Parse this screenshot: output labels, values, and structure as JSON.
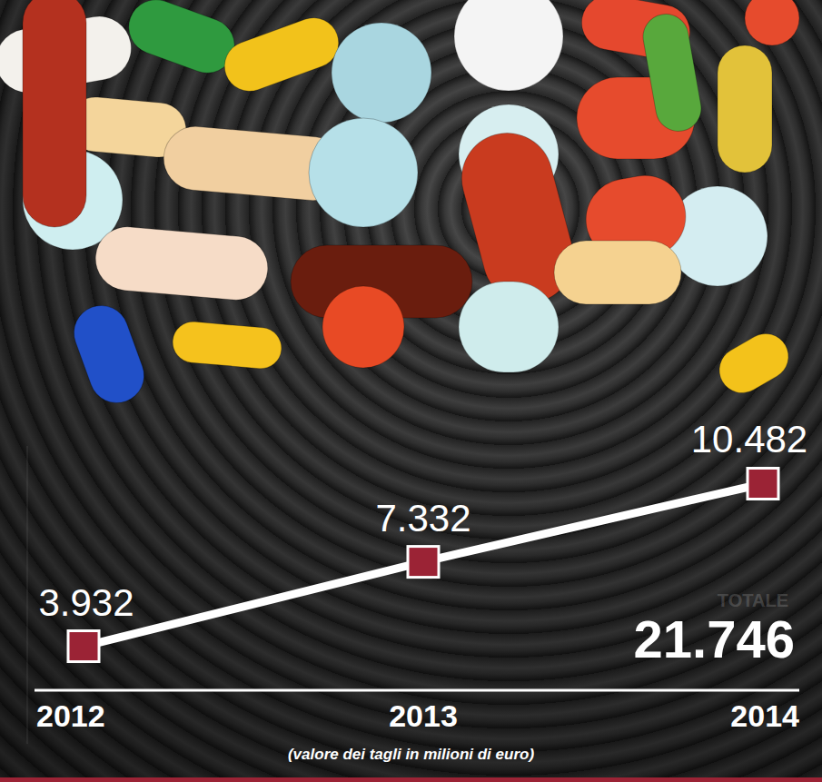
{
  "chart_data": {
    "type": "line",
    "subtitle": "(valore dei tagli in milioni di euro)",
    "categories": [
      "2012",
      "2013",
      "2014"
    ],
    "values": [
      3932,
      7332,
      10482
    ],
    "value_labels": [
      "3.932",
      "7.332",
      "10.482"
    ],
    "color": "#9b2335",
    "marker": "square",
    "data_labels": true,
    "tick_labels": "x",
    "grid": false,
    "ylim": [
      0,
      12000
    ],
    "yticks": [],
    "annotations": [
      {
        "text": "TOTALE"
      },
      {
        "text": "21.746"
      }
    ]
  }
}
